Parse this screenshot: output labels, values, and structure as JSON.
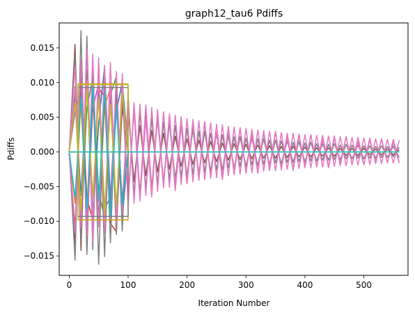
{
  "chart_data": {
    "type": "line",
    "title": "graph12_tau6 Pdiffs",
    "xlabel": "Iteration Number",
    "ylabel": "Pdiffs",
    "xlim": [
      -17,
      575
    ],
    "ylim": [
      -0.0178,
      0.0186
    ],
    "xticks": [
      0,
      100,
      200,
      300,
      400,
      500
    ],
    "xtick_labels": [
      "0",
      "100",
      "200",
      "300",
      "400",
      "500"
    ],
    "yticks": [
      -0.015,
      -0.01,
      -0.005,
      0.0,
      0.005,
      0.01,
      0.015
    ],
    "ytick_labels": [
      "−0.015",
      "−0.010",
      "−0.005",
      "0.000",
      "0.005",
      "0.010",
      "0.015"
    ],
    "grid": false,
    "legend": "none",
    "palette": [
      "#1f77b4",
      "#ff7f0e",
      "#2ca02c",
      "#d62728",
      "#9467bd",
      "#8c564b",
      "#e377c2",
      "#7f7f7f",
      "#bcbd22",
      "#17becf"
    ],
    "series": [
      {
        "color": "#1f77b4",
        "x": [
          0,
          10,
          20,
          30,
          40,
          50,
          60,
          70,
          80,
          90,
          100
        ],
        "values": [
          0.0002,
          0.0081,
          -0.0063,
          0.0097,
          -0.0088,
          0.0041,
          0.0123,
          -0.0071,
          0.0058,
          0.0101,
          0.0002
        ]
      },
      {
        "color": "#ff7f0e",
        "x": [
          0,
          10,
          20,
          30,
          40,
          50,
          60,
          70,
          80,
          90,
          100
        ],
        "values": [
          -0.0001,
          -0.0074,
          0.0069,
          -0.0091,
          0.0085,
          -0.0102,
          0.0064,
          0.0093,
          -0.011,
          0.0088,
          0.0001
        ]
      },
      {
        "color": "#2ca02c",
        "x": [
          0,
          10,
          20,
          30,
          40,
          50,
          60,
          70,
          80,
          90,
          100
        ],
        "values": [
          0.0001,
          0.0094,
          -0.0099,
          0.0063,
          0.0107,
          -0.0058,
          -0.0094,
          0.0082,
          0.0109,
          -0.0087,
          0.0
        ]
      },
      {
        "color": "#d62728",
        "x": [
          0,
          10,
          20,
          30,
          40,
          50,
          60,
          70,
          80,
          90,
          100
        ],
        "values": [
          -0.0002,
          -0.011,
          0.0104,
          -0.0068,
          -0.0097,
          0.0092,
          0.008,
          -0.0103,
          -0.0115,
          0.0069,
          -0.0001
        ]
      },
      {
        "color": "#9467bd",
        "x": [
          0,
          10,
          20,
          30,
          40,
          50,
          60,
          70,
          80,
          90,
          100
        ],
        "values": [
          0.0,
          0.0058,
          0.0091,
          -0.0105,
          0.0062,
          0.0099,
          -0.0081,
          -0.0066,
          0.0094,
          -0.0098,
          0.0
        ]
      },
      {
        "color": "#8c564b",
        "x": [
          0,
          10,
          20,
          30,
          40,
          50,
          60,
          70,
          80,
          90,
          100
        ],
        "values": [
          0.0001,
          0.0155,
          -0.0142,
          0.0118,
          -0.0123,
          0.0104,
          -0.0096,
          0.0081,
          -0.0087,
          0.0064,
          0.0001
        ]
      },
      {
        "color": "#8c564b",
        "x": [
          0,
          10,
          20,
          30,
          40,
          50,
          60,
          70,
          80,
          90,
          100,
          110,
          120,
          130,
          140,
          150,
          160,
          170,
          180,
          190,
          200,
          210,
          220,
          230,
          240,
          250,
          260,
          270,
          280,
          290,
          300,
          310,
          320,
          330,
          340,
          350,
          360,
          370,
          380,
          390,
          400,
          410,
          420,
          430,
          440,
          450,
          460,
          470,
          480,
          490,
          500,
          510,
          520,
          530,
          540,
          550,
          560
        ],
        "values": [
          -0.0002,
          -0.0133,
          0.0126,
          -0.0117,
          0.0105,
          -0.0098,
          0.0091,
          -0.0086,
          0.0079,
          -0.0073,
          0.0061,
          -0.0043,
          0.0038,
          -0.0034,
          0.0031,
          -0.0029,
          0.0027,
          -0.0025,
          0.0023,
          -0.0021,
          0.0019,
          -0.0018,
          0.0017,
          -0.0016,
          0.0015,
          -0.0014,
          0.0013,
          -0.0012,
          0.0012,
          -0.0011,
          0.0011,
          -0.001,
          0.001,
          -0.0009,
          0.0009,
          -0.0009,
          0.0008,
          -0.0008,
          0.0008,
          -0.0007,
          0.0007,
          -0.0007,
          0.0006,
          -0.0006,
          0.0006,
          -0.0006,
          0.0005,
          -0.0005,
          0.0005,
          -0.0005,
          0.0005,
          -0.0004,
          0.0004,
          -0.0004,
          0.0004,
          -0.0004,
          0.0003
        ]
      },
      {
        "color": "#7f7f7f",
        "x": [
          0,
          10,
          20,
          30,
          40,
          50,
          60,
          70,
          80,
          90,
          100,
          110,
          120,
          130,
          140,
          150,
          160,
          170,
          180,
          190,
          200,
          210,
          220,
          230,
          240,
          250,
          260,
          270,
          280,
          290,
          300,
          310,
          320,
          330,
          340,
          350,
          360,
          370,
          380,
          390,
          400,
          410,
          420,
          430,
          440,
          450,
          460,
          470,
          480,
          490,
          500,
          510,
          520,
          530,
          540,
          550,
          560
        ],
        "values": [
          0.0003,
          -0.0156,
          0.0175,
          -0.0148,
          0.0121,
          -0.0162,
          0.0109,
          -0.0131,
          0.0096,
          -0.0114,
          0.0081,
          -0.0062,
          0.0057,
          -0.0052,
          0.0049,
          -0.0046,
          0.0043,
          -0.004,
          0.0038,
          -0.0036,
          0.0034,
          -0.0032,
          0.003,
          -0.0029,
          0.0027,
          -0.0026,
          0.0025,
          -0.0023,
          0.0022,
          -0.0021,
          0.002,
          -0.0019,
          0.0019,
          -0.0018,
          0.0017,
          -0.0016,
          0.0016,
          -0.0015,
          0.0014,
          -0.0014,
          0.0013,
          -0.0013,
          0.0012,
          -0.0012,
          0.0011,
          -0.0011,
          0.001,
          -0.001,
          0.001,
          -0.0009,
          0.0009,
          -0.0009,
          0.0008,
          -0.0008,
          0.0008,
          -0.0007,
          0.0007
        ]
      },
      {
        "color": "#7f7f7f",
        "x": [
          0,
          10,
          20,
          30,
          40,
          50,
          60,
          70,
          80,
          90,
          100,
          110,
          120,
          130,
          140,
          150,
          160,
          170,
          180,
          190,
          200,
          210,
          220,
          230,
          240,
          250,
          260,
          270,
          280,
          290,
          300,
          310,
          320,
          330,
          340,
          350,
          360,
          370,
          380,
          390,
          400,
          410,
          420,
          430,
          440,
          450,
          460,
          470,
          480,
          490,
          500,
          510,
          520,
          530,
          540,
          550,
          560
        ],
        "values": [
          -0.0001,
          0.0139,
          -0.0128,
          0.0167,
          -0.0141,
          0.0117,
          -0.0151,
          0.0098,
          -0.0119,
          0.0087,
          -0.0072,
          0.0066,
          -0.006,
          0.0056,
          -0.0051,
          0.0048,
          -0.0045,
          0.0042,
          -0.0039,
          0.0037,
          -0.0035,
          0.0033,
          -0.0031,
          0.003,
          -0.0028,
          0.0027,
          -0.0026,
          0.0024,
          -0.0023,
          0.0022,
          -0.0021,
          0.002,
          -0.002,
          0.0019,
          -0.0018,
          0.0017,
          -0.0017,
          0.0016,
          -0.0015,
          0.0015,
          -0.0014,
          0.0014,
          -0.0013,
          0.0012,
          -0.0012,
          0.0012,
          -0.0011,
          0.0011,
          -0.001,
          0.001,
          -0.001,
          0.0009,
          -0.0009,
          0.0009,
          -0.0008,
          0.0008,
          -0.0008
        ]
      },
      {
        "color": "#e377c2",
        "x": [
          0,
          10,
          20,
          30,
          40,
          50,
          60,
          70,
          80,
          90,
          100,
          110,
          120,
          130,
          140,
          150,
          160,
          170,
          180,
          190,
          200,
          210,
          220,
          230,
          240,
          250,
          260,
          270,
          280,
          290,
          300,
          310,
          320,
          330,
          340,
          350,
          360,
          370,
          380,
          390,
          400,
          410,
          420,
          430,
          440,
          450,
          460,
          470,
          480,
          490,
          500,
          510,
          520,
          530,
          540,
          550,
          560
        ],
        "values": [
          0.0002,
          0.0124,
          -0.0109,
          0.0148,
          -0.0131,
          0.0136,
          -0.0117,
          0.0129,
          -0.0102,
          0.0113,
          -0.0079,
          0.0071,
          -0.0066,
          0.0068,
          -0.0058,
          0.0061,
          -0.0052,
          0.0055,
          -0.0049,
          0.0051,
          -0.0044,
          0.0047,
          -0.0041,
          0.0043,
          -0.0038,
          0.004,
          -0.0035,
          0.0037,
          -0.0033,
          0.0035,
          -0.0031,
          0.0033,
          -0.0029,
          0.0031,
          -0.0027,
          0.0029,
          -0.0026,
          0.0027,
          -0.0024,
          0.0026,
          -0.0023,
          0.0025,
          -0.0022,
          0.0024,
          -0.0021,
          0.0023,
          -0.002,
          0.0022,
          -0.0019,
          0.0021,
          -0.0018,
          0.002,
          -0.0017,
          0.0019,
          -0.0016,
          0.0018,
          -0.0015
        ]
      },
      {
        "color": "#e377c2",
        "x": [
          0,
          10,
          20,
          30,
          40,
          50,
          60,
          70,
          80,
          90,
          100,
          110,
          120,
          130,
          140,
          150,
          160,
          170,
          180,
          190,
          200,
          210,
          220,
          230,
          240,
          250,
          260,
          270,
          280,
          290,
          300,
          310,
          320,
          330,
          340,
          350,
          360,
          370,
          380,
          390,
          400,
          410,
          420,
          430,
          440,
          450,
          460,
          470,
          480,
          490,
          500,
          510,
          520,
          530,
          540,
          550,
          560
        ],
        "values": [
          -0.0002,
          -0.0117,
          0.0133,
          -0.0121,
          0.0141,
          -0.0108,
          0.0125,
          -0.0097,
          0.0116,
          -0.0089,
          0.0083,
          -0.0074,
          0.0069,
          -0.0063,
          0.0064,
          -0.0057,
          0.0058,
          -0.0051,
          0.0053,
          -0.0047,
          0.0048,
          -0.0043,
          0.0045,
          -0.004,
          0.0042,
          -0.0037,
          0.0039,
          -0.0034,
          0.0036,
          -0.0032,
          0.0034,
          -0.003,
          0.0032,
          -0.0028,
          0.003,
          -0.0027,
          0.0028,
          -0.0025,
          0.0027,
          -0.0024,
          0.0025,
          -0.0023,
          0.0024,
          -0.0022,
          0.0023,
          -0.0021,
          0.0022,
          -0.002,
          0.0021,
          -0.0019,
          0.002,
          -0.0018,
          0.0019,
          -0.0017,
          0.0018,
          -0.0016,
          0.0017
        ]
      },
      {
        "color": "#e377c2",
        "x": [
          0,
          10,
          20,
          30,
          40,
          50,
          60,
          70,
          80,
          90,
          100,
          110,
          120,
          130,
          140,
          150,
          160,
          170,
          180,
          190,
          200,
          210,
          220,
          230,
          240,
          250,
          260,
          270,
          280,
          290,
          300,
          310,
          320,
          330,
          340,
          350,
          360,
          370,
          380,
          390,
          400,
          410,
          420,
          430,
          440,
          450,
          460,
          470,
          480,
          490,
          500,
          510,
          520,
          530,
          540,
          550,
          560
        ],
        "values": [
          0.0001,
          0.0092,
          -0.0086,
          0.0104,
          -0.0099,
          0.0111,
          -0.0093,
          0.0101,
          -0.0088,
          0.0096,
          -0.0062,
          0.0058,
          -0.0071,
          0.0047,
          -0.0065,
          0.0053,
          -0.0042,
          0.0049,
          -0.0056,
          0.0038,
          -0.0046,
          0.0041,
          -0.0033,
          0.0044,
          -0.0036,
          0.0029,
          -0.004,
          0.0032,
          -0.0027,
          0.0035,
          -0.0029,
          0.0025,
          -0.0031,
          0.0028,
          -0.0022,
          0.003,
          -0.0024,
          0.0021,
          -0.0027,
          0.0023,
          -0.0019,
          0.0025,
          -0.0021,
          0.0018,
          -0.0023,
          0.002,
          -0.0016,
          0.0022,
          -0.0018,
          0.0015,
          -0.0019,
          0.0017,
          -0.0014,
          0.0018,
          -0.0015,
          0.0013,
          -0.0016
        ]
      },
      {
        "color": "#bcbd22",
        "x": [
          0,
          10,
          20,
          30,
          40,
          50,
          60,
          70,
          80,
          90,
          100
        ],
        "values": [
          0.0,
          0.0072,
          -0.0084,
          0.0089,
          -0.0064,
          0.0077,
          -0.0091,
          0.0069,
          -0.0078,
          0.0085,
          0.0
        ]
      },
      {
        "color": "#17becf",
        "x": [
          0,
          10,
          20,
          30,
          40,
          50,
          60,
          70,
          80,
          90,
          100
        ],
        "values": [
          0.0001,
          -0.0066,
          0.0079,
          -0.0083,
          0.0096,
          -0.0071,
          0.0088,
          -0.0094,
          0.0067,
          -0.0076,
          0.0001
        ]
      },
      {
        "color": "#d4a017",
        "x": [
          0,
          15,
          15,
          100,
          100
        ],
        "values": [
          0.0,
          0.0,
          0.0098,
          0.0098,
          0.0
        ]
      },
      {
        "color": "#d4a017",
        "x": [
          0,
          15,
          15,
          100,
          100
        ],
        "values": [
          0.0,
          0.0,
          -0.0098,
          -0.0098,
          0.0
        ]
      },
      {
        "color": "#7f7f7f",
        "x": [
          15,
          100,
          100
        ],
        "values": [
          0.0093,
          0.0093,
          0.0
        ]
      },
      {
        "color": "#7f7f7f",
        "x": [
          15,
          100,
          100
        ],
        "values": [
          -0.0093,
          -0.0093,
          0.0
        ]
      },
      {
        "color": "#bcbd22",
        "x": [
          0,
          15,
          15,
          100,
          100
        ],
        "values": [
          0.0,
          0.0,
          0.0097,
          0.0097,
          0.0
        ]
      },
      {
        "color": "#d4a017",
        "x": [
          0,
          560
        ],
        "values": [
          0.0,
          0.0
        ]
      },
      {
        "color": "#17becf",
        "x": [
          0,
          560
        ],
        "values": [
          0.0,
          0.0
        ]
      }
    ]
  }
}
